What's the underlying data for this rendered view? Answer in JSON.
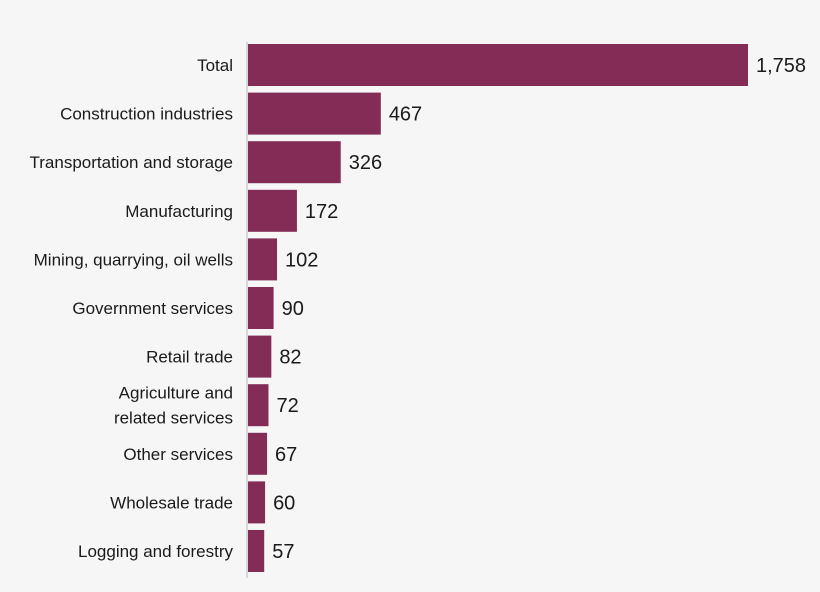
{
  "chart_data": {
    "type": "bar",
    "orientation": "horizontal",
    "categories": [
      [
        "Total"
      ],
      [
        "Construction industries"
      ],
      [
        "Transportation and storage"
      ],
      [
        "Manufacturing"
      ],
      [
        "Mining, quarrying, oil wells"
      ],
      [
        "Government services"
      ],
      [
        "Retail trade"
      ],
      [
        "Agriculture and",
        "related services"
      ],
      [
        "Other services"
      ],
      [
        "Wholesale trade"
      ],
      [
        "Logging and forestry"
      ]
    ],
    "values": [
      1758,
      467,
      326,
      172,
      102,
      90,
      82,
      72,
      67,
      60,
      57
    ],
    "value_labels": [
      "1,758",
      "467",
      "326",
      "172",
      "102",
      "90",
      "82",
      "72",
      "67",
      "60",
      "57"
    ],
    "xlim": [
      0,
      1758
    ],
    "grid": false,
    "bar_color": "#832c55",
    "axis_color": "#cccccc",
    "background": "#f6f6f6"
  }
}
